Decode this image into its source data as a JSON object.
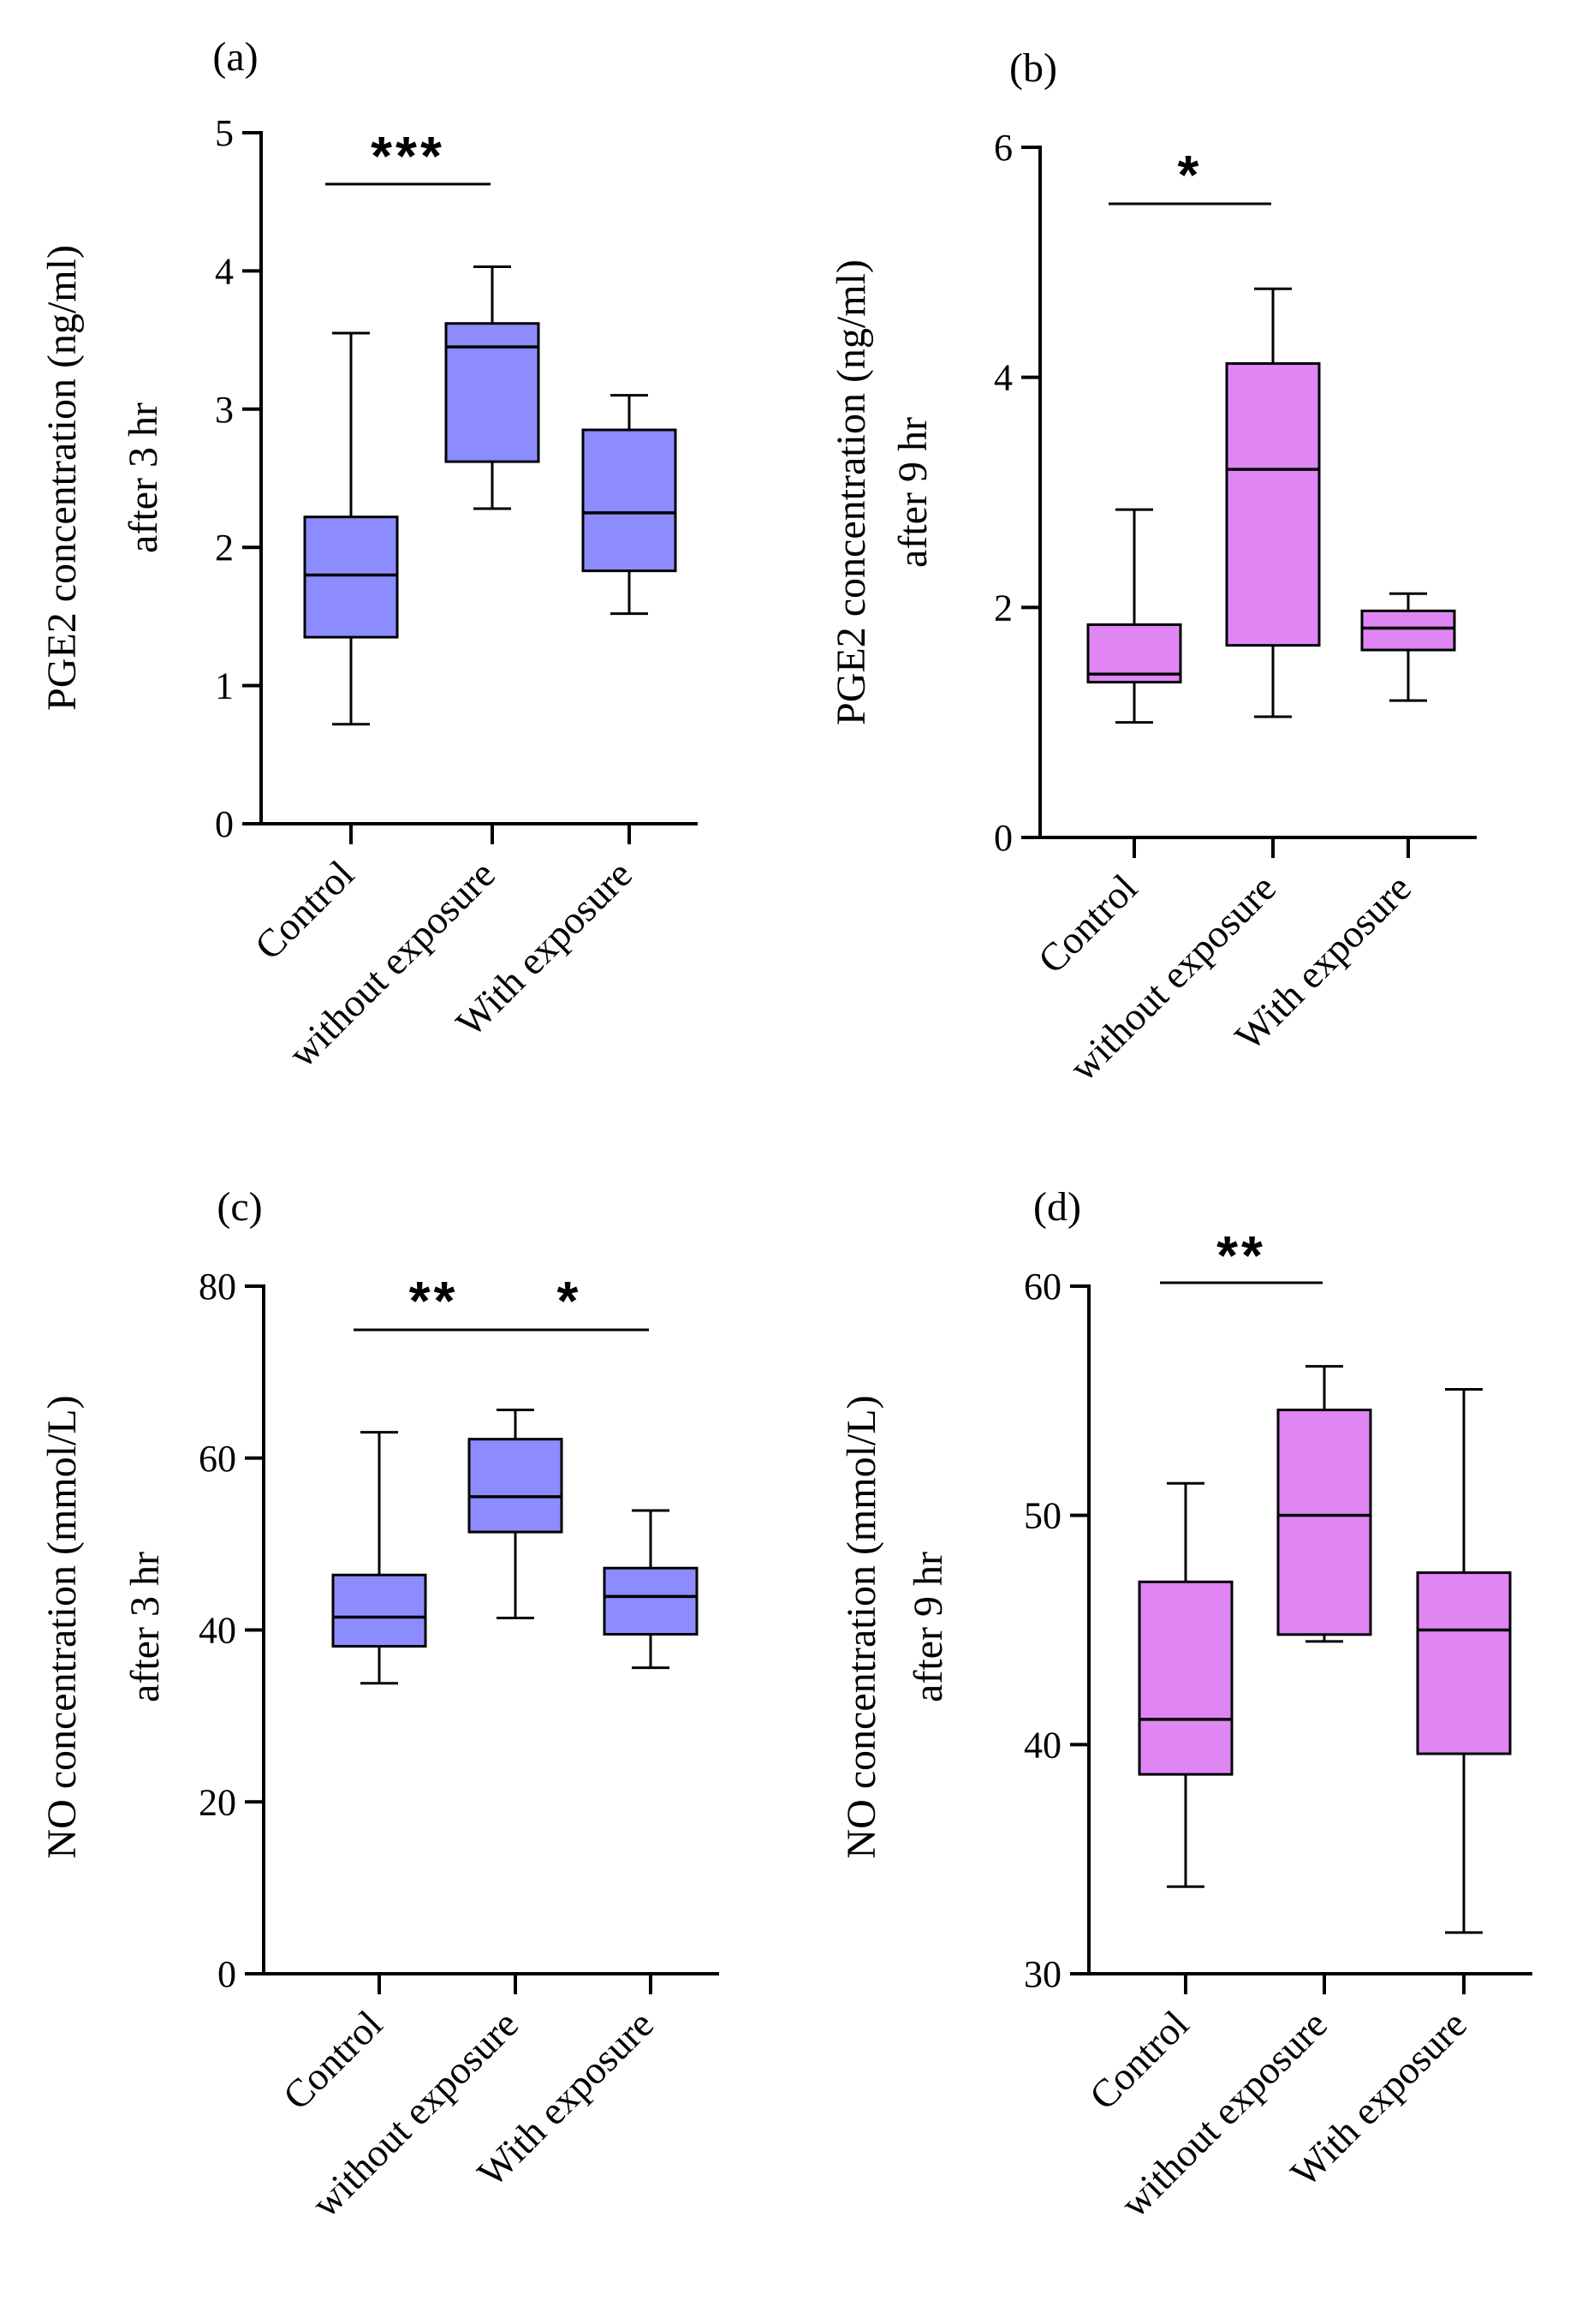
{
  "chart_data": [
    {
      "type": "box",
      "panel_label": "(a)",
      "ylabel_line1": "PGE2 concentration (ng/ml)",
      "ylabel_line2": "after 3 hr",
      "ylim": [
        0,
        5
      ],
      "yticks": [
        0,
        1,
        2,
        3,
        4,
        5
      ],
      "categories": [
        "Control",
        "without exposure",
        "With exposure"
      ],
      "fill": "#8c8cff",
      "boxes": [
        {
          "min": 0.72,
          "q1": 1.35,
          "median": 1.8,
          "q3": 2.22,
          "max": 3.55
        },
        {
          "min": 2.28,
          "q1": 2.62,
          "median": 3.45,
          "q3": 3.62,
          "max": 4.03
        },
        {
          "min": 1.52,
          "q1": 1.83,
          "median": 2.25,
          "q3": 2.85,
          "max": 3.1
        }
      ],
      "significance": [
        {
          "from": 0,
          "to": 1,
          "label": "***"
        }
      ]
    },
    {
      "type": "box",
      "panel_label": "(b)",
      "ylabel_line1": "PGE2 concentration (ng/ml)",
      "ylabel_line2": "after 9 hr",
      "ylim": [
        0,
        6
      ],
      "yticks": [
        0,
        2,
        4,
        6
      ],
      "categories": [
        "Control",
        "without exposure",
        "With exposure"
      ],
      "fill": "#df86f4",
      "boxes": [
        {
          "min": 1.0,
          "q1": 1.35,
          "median": 1.42,
          "q3": 1.85,
          "max": 2.85
        },
        {
          "min": 1.05,
          "q1": 1.67,
          "median": 3.2,
          "q3": 4.12,
          "max": 4.77
        },
        {
          "min": 1.19,
          "q1": 1.63,
          "median": 1.82,
          "q3": 1.97,
          "max": 2.12
        }
      ],
      "significance": [
        {
          "from": 0,
          "to": 1,
          "label": "*"
        }
      ]
    },
    {
      "type": "box",
      "panel_label": "(c)",
      "ylabel_line1": "NO concentration (mmol/L)",
      "ylabel_line2": "after 3 hr",
      "ylim": [
        0,
        80
      ],
      "yticks": [
        0,
        20,
        40,
        60,
        80
      ],
      "categories": [
        "Control",
        "without exposure",
        "With exposure"
      ],
      "fill": "#8c8cff",
      "boxes": [
        {
          "min": 33.8,
          "q1": 38.1,
          "median": 41.5,
          "q3": 46.4,
          "max": 63.0
        },
        {
          "min": 41.4,
          "q1": 51.4,
          "median": 55.5,
          "q3": 62.2,
          "max": 65.6
        },
        {
          "min": 35.6,
          "q1": 39.5,
          "median": 43.9,
          "q3": 47.2,
          "max": 53.9
        }
      ],
      "significance": [
        {
          "from": 0,
          "to": 1,
          "label": "**"
        },
        {
          "from": 1,
          "to": 2,
          "label": "*"
        }
      ]
    },
    {
      "type": "box",
      "panel_label": "(d)",
      "ylabel_line1": "NO concentration (mmol/L)",
      "ylabel_line2": "after 9 hr",
      "ylim": [
        30,
        60
      ],
      "yticks": [
        30,
        40,
        50,
        60
      ],
      "categories": [
        "Control",
        "without exposure",
        "With exposure"
      ],
      "fill": "#df86f4",
      "boxes": [
        {
          "min": 33.8,
          "q1": 38.7,
          "median": 41.1,
          "q3": 47.1,
          "max": 51.4
        },
        {
          "min": 44.5,
          "q1": 44.8,
          "median": 50.0,
          "q3": 54.6,
          "max": 56.5
        },
        {
          "min": 31.8,
          "q1": 39.6,
          "median": 45.0,
          "q3": 47.5,
          "max": 55.5
        }
      ],
      "significance": [
        {
          "from": 0,
          "to": 1,
          "label": "**"
        }
      ]
    }
  ]
}
